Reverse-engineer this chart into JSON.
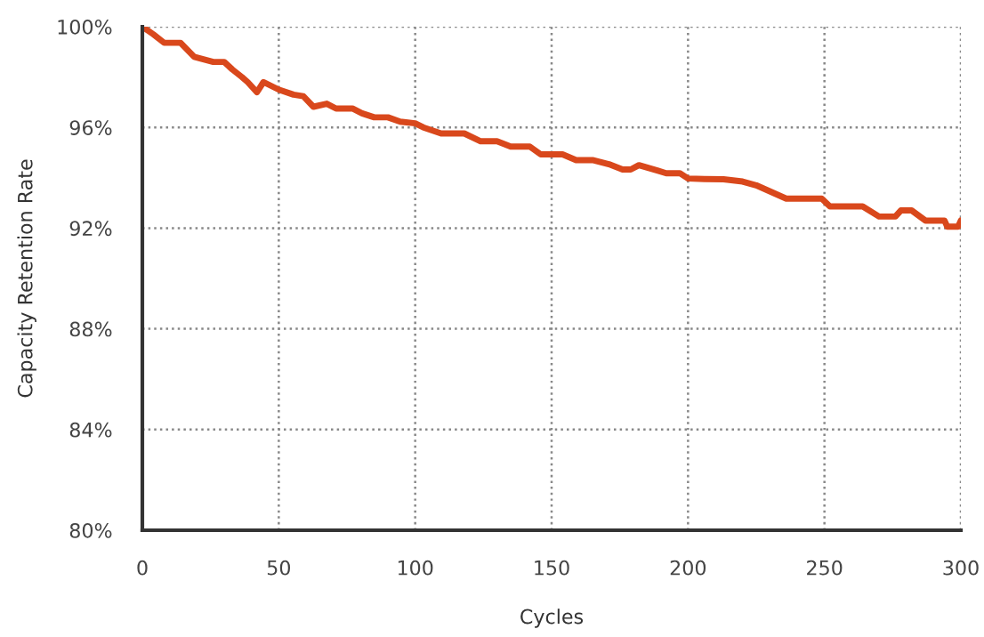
{
  "chart_data": {
    "type": "line",
    "xlabel": "Cycles",
    "ylabel": "Capacity Retention Rate",
    "x": [
      0,
      4,
      8,
      14,
      19,
      26,
      30,
      33,
      36.5,
      38.6,
      42,
      44.4,
      50,
      55.4,
      59,
      62.7,
      67.6,
      71,
      77,
      80.5,
      85,
      90,
      94.5,
      100,
      103,
      109.5,
      118,
      124,
      130,
      135,
      142,
      146,
      154,
      159,
      165,
      171,
      176,
      179,
      182,
      189,
      192,
      197,
      200,
      206,
      213,
      220,
      225,
      236,
      249,
      252,
      264,
      270,
      276,
      278,
      282,
      287,
      294,
      295,
      299,
      300
    ],
    "series": [
      {
        "color": "#d9481c",
        "values": [
          100.0,
          99.7,
          99.36,
          99.36,
          98.8,
          98.6,
          98.6,
          98.3,
          98.0,
          97.8,
          97.4,
          97.8,
          97.5,
          97.3,
          97.24,
          96.82,
          96.94,
          96.75,
          96.75,
          96.56,
          96.4,
          96.4,
          96.23,
          96.16,
          96.0,
          95.76,
          95.76,
          95.45,
          95.45,
          95.24,
          95.24,
          94.93,
          94.93,
          94.7,
          94.7,
          94.54,
          94.33,
          94.33,
          94.5,
          94.28,
          94.18,
          94.18,
          93.97,
          93.95,
          93.94,
          93.85,
          93.7,
          93.17,
          93.17,
          92.86,
          92.86,
          92.46,
          92.46,
          92.7,
          92.7,
          92.3,
          92.3,
          92.06,
          92.06,
          92.3
        ]
      }
    ],
    "xlim": [
      0,
      300
    ],
    "xticks": [
      0,
      50,
      100,
      150,
      200,
      250,
      300
    ],
    "ylim": [
      80,
      100
    ],
    "yticks": [
      {
        "value": 80,
        "label": "80%"
      },
      {
        "value": 84,
        "label": "84%"
      },
      {
        "value": 88,
        "label": "88%"
      },
      {
        "value": 92,
        "label": "92%"
      },
      {
        "value": 96,
        "label": "96%"
      },
      {
        "value": 100,
        "label": "100%"
      }
    ],
    "grid": true,
    "legend": false,
    "marker": "none",
    "line_style": "solid"
  }
}
